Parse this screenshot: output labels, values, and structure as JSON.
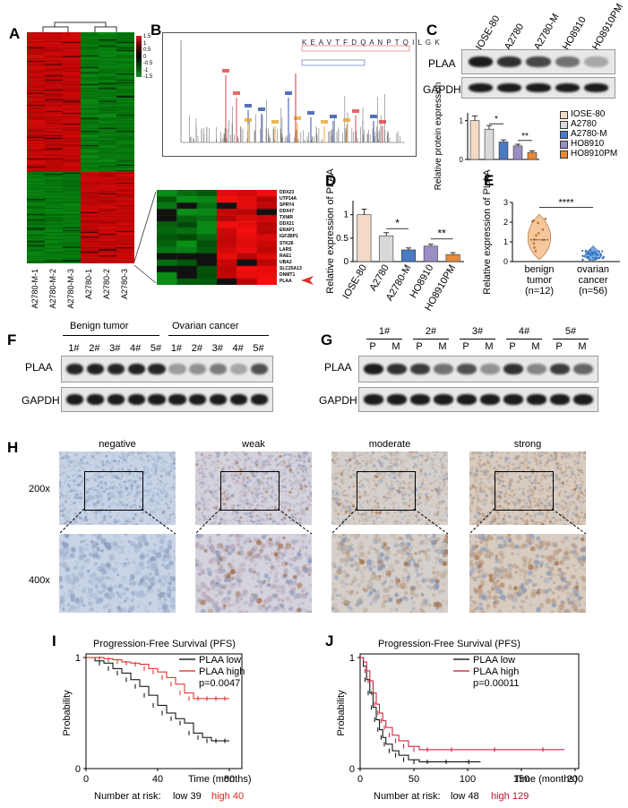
{
  "panels": {
    "A": {
      "letter": "A",
      "samples": [
        "A2780-M-1",
        "A2780-M-2",
        "A2780-M-3",
        "A2780-1",
        "A2780-2",
        "A2780-3"
      ],
      "scale_ticks": [
        "1.5",
        "1",
        "0.5",
        "0",
        "-0.5",
        "-1",
        "-1.5"
      ],
      "colors": {
        "high": "#d21f1f",
        "low": "#1e8a2e",
        "mid": "#000000"
      },
      "zoom_genes": [
        "DDX23",
        "UTP14A",
        "SPRY4",
        "DDX47",
        "TXNIR",
        "DDX21",
        "ERAP1",
        "IGF2BP1",
        "STK26",
        "LARS",
        "RAE1",
        "UBA2",
        "SLC25A13",
        "DNMT1",
        "PLAA"
      ]
    },
    "B": {
      "letter": "B",
      "sequence": "K E A V T F D Q A N P T Q I L G K"
    },
    "C": {
      "letter": "C",
      "lanes": [
        "IOSE-80",
        "A2780",
        "A2780-M",
        "HO8910",
        "HO8910PM"
      ],
      "rows": [
        "PLAA",
        "GAPDH"
      ],
      "chart_data": {
        "type": "bar",
        "categories": [
          "IOSE-80",
          "A2780",
          "A2780-M",
          "HO8910",
          "HO8910PM"
        ],
        "values": [
          1.0,
          0.78,
          0.45,
          0.35,
          0.18
        ],
        "colors": [
          "#f4d9c6",
          "#d9d9d9",
          "#4a7ac2",
          "#9b8ec4",
          "#e88a3a"
        ],
        "ylabel": "Relative protein expression",
        "ylim": [
          0,
          1.2
        ],
        "yticks": [
          "0",
          "1"
        ],
        "legend": "right",
        "significance": [
          "*",
          "**"
        ]
      }
    },
    "D": {
      "letter": "D",
      "chart_data": {
        "type": "bar",
        "categories": [
          "IOSE-80",
          "A2780",
          "A2780-M",
          "HO8910",
          "HO8910PM"
        ],
        "values": [
          1.0,
          0.55,
          0.25,
          0.33,
          0.15
        ],
        "colors": [
          "#f4d9c6",
          "#d9d9d9",
          "#4a7ac2",
          "#9b8ec4",
          "#e88a3a"
        ],
        "ylabel": "Relative expression of PLAA",
        "ylim": [
          0,
          1.3
        ],
        "yticks": [
          "0",
          "0.5",
          "1"
        ],
        "significance": [
          "*",
          "**"
        ]
      }
    },
    "E": {
      "letter": "E",
      "chart_data": {
        "type": "violin",
        "groups": [
          "benign tumor",
          "ovarian cancer"
        ],
        "n": [
          "(n=12)",
          "(n=56)"
        ],
        "medians": [
          1.1,
          0.25
        ],
        "colors": [
          "#f4c89c",
          "#7ab0e0"
        ],
        "ylabel": "Relative expression of PLAA",
        "ylim": [
          0,
          3
        ],
        "yticks": [
          "0",
          "1",
          "2",
          "3"
        ],
        "significance": "****"
      }
    },
    "F": {
      "letter": "F",
      "group_labels": [
        "Benign tumor",
        "Ovarian cancer"
      ],
      "lanes": [
        "1#",
        "2#",
        "3#",
        "4#",
        "5#",
        "1#",
        "2#",
        "3#",
        "4#",
        "5#"
      ],
      "rows": [
        "PLAA",
        "GAPDH"
      ]
    },
    "G": {
      "letter": "G",
      "pairs": [
        "1#",
        "2#",
        "3#",
        "4#",
        "5#"
      ],
      "sub": [
        "P",
        "M"
      ],
      "rows": [
        "PLAA",
        "GAPDH"
      ]
    },
    "H": {
      "letter": "H",
      "columns": [
        "negative",
        "weak",
        "moderate",
        "strong"
      ],
      "magnifications": [
        "200x",
        "400x"
      ]
    },
    "I": {
      "letter": "I",
      "chart_data": {
        "type": "line",
        "title": "Progression-Free Survival (PFS)",
        "xlabel": "Time (months)",
        "ylabel": "Probability",
        "xlim": [
          0,
          85
        ],
        "xticks": [
          "0",
          "40",
          "80"
        ],
        "ylim": [
          0,
          1
        ],
        "yticks": [
          "0",
          "1"
        ],
        "series": [
          {
            "name": "PLAA low",
            "color": "#000000",
            "x": [
              0,
              5,
              10,
              15,
              20,
              25,
              30,
              35,
              40,
              45,
              50,
              55,
              60,
              65,
              70,
              75,
              80
            ],
            "y": [
              1,
              0.97,
              0.95,
              0.9,
              0.86,
              0.8,
              0.74,
              0.66,
              0.57,
              0.5,
              0.45,
              0.41,
              0.32,
              0.28,
              0.25,
              0.25,
              0.25
            ]
          },
          {
            "name": "PLAA high",
            "color": "#e02020",
            "x": [
              0,
              5,
              10,
              15,
              20,
              25,
              30,
              35,
              40,
              45,
              50,
              55,
              60,
              65,
              70,
              75,
              80
            ],
            "y": [
              1,
              1,
              0.99,
              0.98,
              0.96,
              0.95,
              0.94,
              0.9,
              0.87,
              0.82,
              0.76,
              0.68,
              0.63,
              0.63,
              0.63,
              0.63,
              0.63
            ]
          }
        ],
        "pvalue": "p=0.0047",
        "risk_label": "Number at risk:",
        "risk_low": "low 39",
        "risk_high": "high 40"
      }
    },
    "J": {
      "letter": "J",
      "chart_data": {
        "type": "line",
        "title": "Progression-Free Survival (PFS)",
        "xlabel": "Time (months)",
        "ylabel": "Probability",
        "xlim": [
          0,
          200
        ],
        "xticks": [
          "0",
          "50",
          "100",
          "150",
          "200"
        ],
        "ylim": [
          0,
          1
        ],
        "yticks": [
          "0",
          "1"
        ],
        "series": [
          {
            "name": "PLAA low",
            "color": "#000000",
            "x": [
              0,
              3,
              6,
              9,
              12,
              15,
              18,
              21,
              24,
              30,
              36,
              45,
              55,
              70,
              90,
              112
            ],
            "y": [
              1,
              0.92,
              0.8,
              0.68,
              0.55,
              0.44,
              0.35,
              0.28,
              0.22,
              0.16,
              0.12,
              0.08,
              0.06,
              0.06,
              0.06,
              0.06
            ]
          },
          {
            "name": "PLAA high",
            "color": "#c8102e",
            "x": [
              0,
              3,
              6,
              9,
              12,
              15,
              18,
              21,
              24,
              30,
              36,
              45,
              55,
              70,
              100,
              150,
              190
            ],
            "y": [
              1,
              0.96,
              0.88,
              0.79,
              0.68,
              0.58,
              0.5,
              0.43,
              0.37,
              0.3,
              0.25,
              0.2,
              0.17,
              0.17,
              0.17,
              0.17,
              0.17
            ]
          }
        ],
        "pvalue": "p=0.00011",
        "risk_label": "Number at risk:",
        "risk_low": "low 48",
        "risk_high": "high 129"
      }
    }
  }
}
